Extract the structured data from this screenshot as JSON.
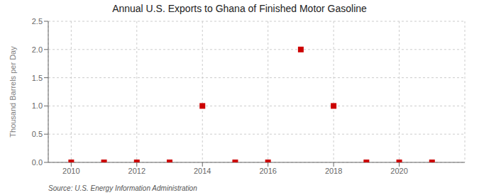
{
  "chart_data": {
    "type": "scatter",
    "title": "Annual U.S. Exports to Ghana of Finished Motor Gasoline",
    "ylabel": "Thousand Barrels per Day",
    "annotations": [
      "Source: U.S. Energy Information Administration"
    ],
    "x": [
      2010,
      2011,
      2012,
      2013,
      2014,
      2015,
      2016,
      2017,
      2018,
      2019,
      2020,
      2021
    ],
    "values": [
      0.0,
      0.0,
      0.0,
      0.0,
      1.0,
      0.0,
      0.0,
      2.0,
      1.0,
      0.0,
      0.0,
      0.0
    ],
    "color": "#cc0000",
    "marker": "square",
    "xlim": [
      2009.3,
      2022.0
    ],
    "ylim": [
      0,
      2.5
    ],
    "xticks": [
      2010,
      2012,
      2014,
      2016,
      2018,
      2020
    ],
    "yticks": [
      {
        "value": 0.0,
        "label": "0.0"
      },
      0.5,
      {
        "value": 1.0,
        "label": "1.0"
      },
      1.5,
      {
        "value": 2.0,
        "label": "2.0"
      },
      2.5
    ],
    "grid": true
  }
}
